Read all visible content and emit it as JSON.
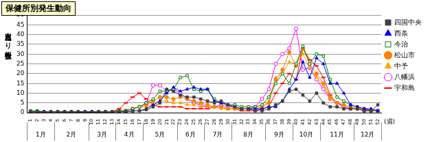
{
  "chart_data": {
    "type": "line",
    "title": "保健所別発生動向",
    "y_label": "定点当たり報告数",
    "x_label": "(週)",
    "x_group_labels": [
      "1月",
      "2月",
      "3月",
      "4月",
      "5月",
      "6月",
      "7月",
      "8月",
      "9月",
      "10月",
      "11月",
      "12月"
    ],
    "categories": [
      1,
      2,
      3,
      4,
      5,
      6,
      7,
      8,
      9,
      10,
      11,
      12,
      13,
      14,
      15,
      16,
      17,
      18,
      19,
      20,
      21,
      22,
      23,
      24,
      25,
      26,
      27,
      28,
      29,
      30,
      31,
      32,
      33,
      34,
      35,
      36,
      37,
      38,
      39,
      40,
      41,
      42,
      43,
      44,
      45,
      46,
      47,
      48,
      49,
      50,
      51,
      52
    ],
    "ylim": [
      0,
      50
    ],
    "yticks": [
      0,
      5,
      10,
      15,
      20,
      25,
      30,
      35,
      40,
      45,
      50
    ],
    "grid": true,
    "legend": "right",
    "series": [
      {
        "name": "四国中央",
        "color": "#404040",
        "marker": "square",
        "values": [
          0.5,
          0.5,
          0.3,
          0.5,
          0.5,
          0.3,
          0.5,
          0.3,
          0.2,
          0.3,
          0.3,
          0.5,
          0.5,
          0.5,
          0.5,
          1,
          1,
          1.5,
          3,
          5,
          12,
          11,
          9,
          8,
          8,
          7,
          6,
          5,
          6,
          4,
          3,
          2,
          2,
          1,
          1,
          2,
          4,
          6,
          11,
          12,
          9,
          6,
          10,
          5,
          3,
          3,
          2,
          2,
          2,
          1,
          1,
          4
        ]
      },
      {
        "name": "西条",
        "color": "#0000ff",
        "marker": "triangle",
        "values": [
          0.5,
          0.5,
          0.5,
          0.5,
          0.5,
          0.5,
          0.5,
          0.5,
          0.5,
          0.5,
          0.5,
          0.5,
          0.5,
          0.5,
          0.5,
          0.8,
          1,
          2,
          4,
          6,
          10,
          13,
          11,
          12,
          13,
          12,
          12,
          6,
          5,
          4,
          3,
          2,
          2,
          2,
          2,
          3,
          3,
          6,
          12,
          17,
          26,
          18,
          28,
          25,
          15,
          15,
          10,
          4,
          3,
          2,
          2,
          1
        ]
      },
      {
        "name": "今治",
        "color": "#008000",
        "marker": "square-open",
        "values": [
          1,
          1,
          0.5,
          0.5,
          0.5,
          0.5,
          0.5,
          0.5,
          0.5,
          0.5,
          0.5,
          0.5,
          0.5,
          1,
          1,
          2,
          3,
          5,
          7,
          11,
          11,
          12,
          18,
          19,
          12,
          11,
          12,
          7,
          5,
          4,
          4,
          3,
          3,
          3,
          4,
          8,
          15,
          20,
          15,
          25,
          34,
          25,
          30,
          29,
          17,
          8,
          6,
          4,
          3,
          2,
          1,
          1
        ]
      },
      {
        "name": "松山市",
        "color": "#ff8000",
        "marker": "circle",
        "values": [
          0.5,
          0.5,
          0.5,
          0.5,
          0.5,
          0.5,
          0.5,
          0.5,
          0.5,
          0.5,
          0.5,
          0.5,
          0.5,
          1,
          1,
          2,
          3,
          4,
          6,
          8,
          8,
          7,
          8,
          7,
          6,
          5,
          4,
          3,
          3,
          2,
          2,
          2,
          2,
          2,
          3,
          5,
          17,
          22,
          31,
          24,
          33,
          25,
          20,
          15,
          8,
          5,
          4,
          3,
          2,
          2,
          1,
          1
        ]
      },
      {
        "name": "中予",
        "color": "#ffa500",
        "marker": "triangle",
        "values": [
          0.5,
          0.5,
          0.5,
          0.5,
          0.5,
          0.5,
          0.5,
          0.5,
          0.5,
          0.5,
          0.5,
          0.5,
          0.5,
          1,
          1,
          2,
          3,
          3,
          4,
          6,
          6,
          5,
          5,
          4,
          4,
          3,
          3,
          3,
          2,
          2,
          2,
          2,
          2,
          2,
          3,
          6,
          18,
          20,
          26,
          25,
          30,
          23,
          18,
          14,
          7,
          5,
          4,
          3,
          2,
          2,
          1,
          1
        ]
      },
      {
        "name": "八幡浜",
        "color": "#ff00ff",
        "marker": "circle-open",
        "values": [
          0.3,
          0.3,
          0.3,
          0.3,
          0.3,
          0.3,
          0.3,
          0.3,
          0.3,
          0.3,
          0.3,
          0.3,
          0.3,
          0.5,
          1,
          2,
          3,
          5,
          14,
          14,
          11,
          12,
          10,
          7,
          5,
          4,
          3,
          3,
          4,
          3,
          3,
          2,
          2,
          3,
          7,
          12,
          25,
          30,
          33,
          43,
          22,
          23,
          17,
          12,
          7,
          5,
          3,
          2,
          2,
          1,
          1,
          1
        ]
      },
      {
        "name": "宇和島",
        "color": "#ff0000",
        "marker": "dash",
        "values": [
          0.5,
          0.5,
          0.5,
          0.5,
          0.5,
          0.5,
          0.5,
          0.5,
          0.5,
          0.5,
          0.5,
          0.5,
          0.5,
          2,
          5,
          8,
          10,
          7,
          4,
          3,
          3,
          3,
          3,
          2,
          2,
          2,
          2,
          3,
          3,
          2,
          2,
          1,
          1,
          1,
          2,
          3,
          10,
          15,
          20,
          17,
          33,
          27,
          24,
          18,
          9,
          5,
          3,
          2,
          2,
          1,
          1,
          1
        ]
      }
    ]
  }
}
